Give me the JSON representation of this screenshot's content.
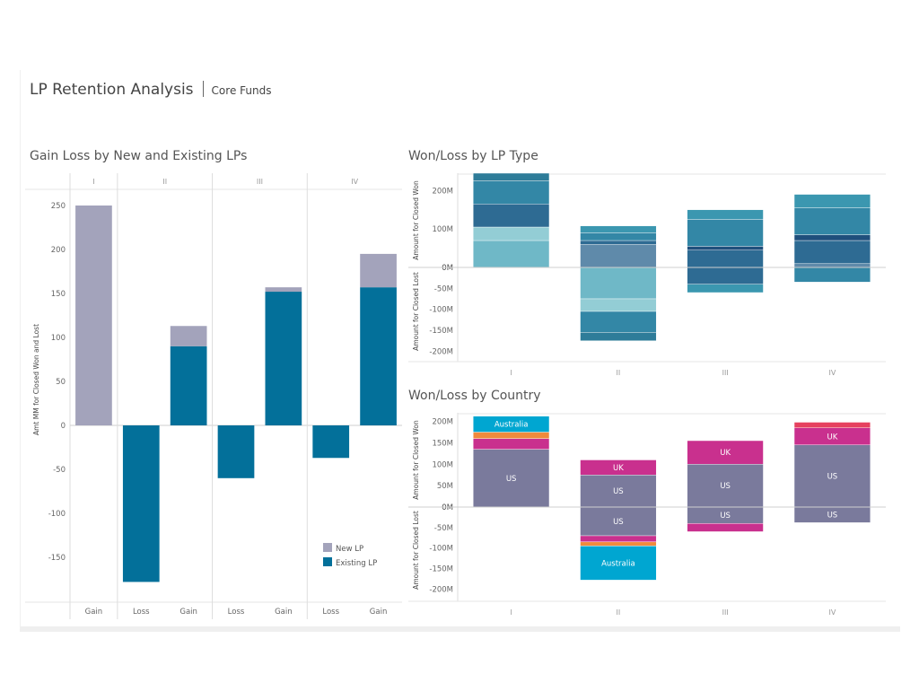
{
  "header": {
    "title": "LP Retention Analysis",
    "subtitle": "Core Funds"
  },
  "chart_data": [
    {
      "type": "bar",
      "title": "Gain Loss by New and Existing LPs",
      "ylabel": "Amt MM for Closed Won and Lost",
      "ylim": [
        -180,
        255
      ],
      "yticks": [
        250,
        200,
        150,
        100,
        50,
        0,
        -50,
        -100,
        -150
      ],
      "panels": [
        {
          "name": "I",
          "categories": [
            "Gain"
          ]
        },
        {
          "name": "II",
          "categories": [
            "Loss",
            "Gain"
          ]
        },
        {
          "name": "III",
          "categories": [
            "Loss",
            "Gain"
          ]
        },
        {
          "name": "IV",
          "categories": [
            "Loss",
            "Gain"
          ]
        }
      ],
      "legend": {
        "position": "bottom-right"
      },
      "series": [
        {
          "name": "New LP",
          "color": "#a3a3bb",
          "values": [
            250,
            0,
            23,
            0,
            5,
            0,
            38
          ]
        },
        {
          "name": "Existing LP",
          "color": "#03709a",
          "values": [
            0,
            -178,
            90,
            -60,
            152,
            -37,
            157
          ]
        }
      ]
    },
    {
      "type": "bar",
      "title": "Won/Loss by LP Type",
      "ylabel_top": "Amount for Closed Won",
      "ylabel_bottom": "Amount for Closed Lost",
      "categories": [
        "I",
        "II",
        "III",
        "IV"
      ],
      "top": {
        "ylim": [
          0,
          245
        ],
        "yticks": [
          "200M",
          "100M",
          "0M"
        ],
        "stacks": [
          [
            [
              0,
              70,
              "#6fb8c7"
            ],
            [
              70,
              105,
              "#93cdd5"
            ],
            [
              105,
              165,
              "#2e6b93"
            ],
            [
              165,
              225,
              "#3387a6"
            ],
            [
              225,
              245,
              "#2e7c99"
            ]
          ],
          [
            [
              0,
              60,
              "#5f8aaa"
            ],
            [
              60,
              70,
              "#2e6b93"
            ],
            [
              70,
              90,
              "#3387a6"
            ],
            [
              90,
              108,
              "#3b97b0"
            ]
          ],
          [
            [
              0,
              45,
              "#2e6b93"
            ],
            [
              45,
              55,
              "#1f4f7c"
            ],
            [
              55,
              125,
              "#3387a6"
            ],
            [
              125,
              150,
              "#3b97b0"
            ]
          ],
          [
            [
              0,
              10,
              "#5f8aaa"
            ],
            [
              10,
              70,
              "#2e6b93"
            ],
            [
              70,
              85,
              "#1f4f7c"
            ],
            [
              85,
              155,
              "#3387a6"
            ],
            [
              155,
              190,
              "#3b97b0"
            ]
          ]
        ]
      },
      "bottom": {
        "ylim": [
          -210,
          0
        ],
        "yticks": [
          "0M",
          "-50M",
          "-100M",
          "-150M",
          "-200M"
        ],
        "stacks": [
          [],
          [
            [
              0,
              -75,
              "#6fb8c7"
            ],
            [
              -75,
              -105,
              "#93cdd5"
            ],
            [
              -105,
              -155,
              "#3387a6"
            ],
            [
              -155,
              -175,
              "#2e7c99"
            ]
          ],
          [
            [
              0,
              -40,
              "#2e6b93"
            ],
            [
              -40,
              -60,
              "#3b97b0"
            ]
          ],
          [
            [
              0,
              -35,
              "#3387a6"
            ]
          ]
        ]
      }
    },
    {
      "type": "bar",
      "title": "Won/Loss by Country",
      "ylabel_top": "Amount for Closed Won",
      "ylabel_bottom": "Amount for Closed Lost",
      "categories": [
        "I",
        "II",
        "III",
        "IV"
      ],
      "top": {
        "ylim": [
          0,
          220
        ],
        "yticks": [
          "200M",
          "150M",
          "100M",
          "50M",
          "0M"
        ],
        "stacks": [
          [
            [
              0,
              135,
              "#7a7a9c",
              "US"
            ],
            [
              135,
              160,
              "#c9308e",
              ""
            ],
            [
              160,
              175,
              "#f08a3c",
              ""
            ],
            [
              175,
              212,
              "#00a6d1",
              "Australia"
            ]
          ],
          [
            [
              0,
              75,
              "#7a7a9c",
              "US"
            ],
            [
              75,
              110,
              "#c9308e",
              "UK"
            ]
          ],
          [
            [
              0,
              100,
              "#7a7a9c",
              "US"
            ],
            [
              100,
              155,
              "#c9308e",
              "UK"
            ]
          ],
          [
            [
              0,
              145,
              "#7a7a9c",
              "US"
            ],
            [
              145,
              185,
              "#c9308e",
              "UK"
            ],
            [
              185,
              198,
              "#e6415f",
              ""
            ]
          ]
        ]
      },
      "bottom": {
        "ylim": [
          -210,
          0
        ],
        "yticks": [
          "0M",
          "-50M",
          "-100M",
          "-150M",
          "-200M"
        ],
        "stacks": [
          [],
          [
            [
              0,
              -70,
              "#7a7a9c",
              "US"
            ],
            [
              -70,
              -85,
              "#c9308e",
              ""
            ],
            [
              -85,
              -95,
              "#f08a3c",
              ""
            ],
            [
              -95,
              -178,
              "#00a6d1",
              "Australia"
            ]
          ],
          [
            [
              0,
              -40,
              "#7a7a9c",
              "US"
            ],
            [
              -40,
              -60,
              "#c9308e",
              ""
            ]
          ],
          [
            [
              0,
              -38,
              "#7a7a9c",
              "US"
            ]
          ]
        ]
      }
    }
  ]
}
